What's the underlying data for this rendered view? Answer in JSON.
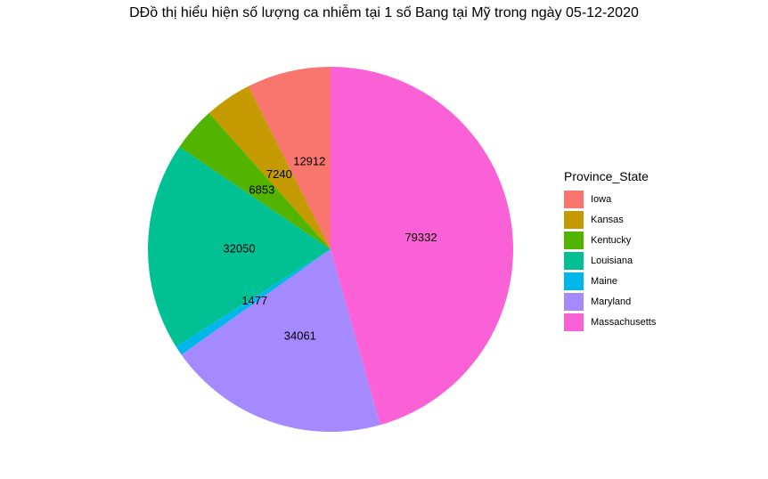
{
  "chart_data": {
    "type": "pie",
    "title": "DĐồ thị hiểu hiện số lượng ca nhiễm tại 1 số Bang tại Mỹ trong ngày 05-12-2020",
    "legend_title": "Province_State",
    "legend_placement": "right",
    "categories": [
      "Iowa",
      "Kansas",
      "Kentucky",
      "Louisiana",
      "Maine",
      "Maryland",
      "Massachusetts"
    ],
    "values": [
      12912,
      7240,
      6853,
      32050,
      1477,
      34061,
      79332
    ],
    "colors": [
      "#F8766D",
      "#C49A00",
      "#53B400",
      "#00C094",
      "#00B6EB",
      "#A58AFF",
      "#FB61D7"
    ]
  }
}
